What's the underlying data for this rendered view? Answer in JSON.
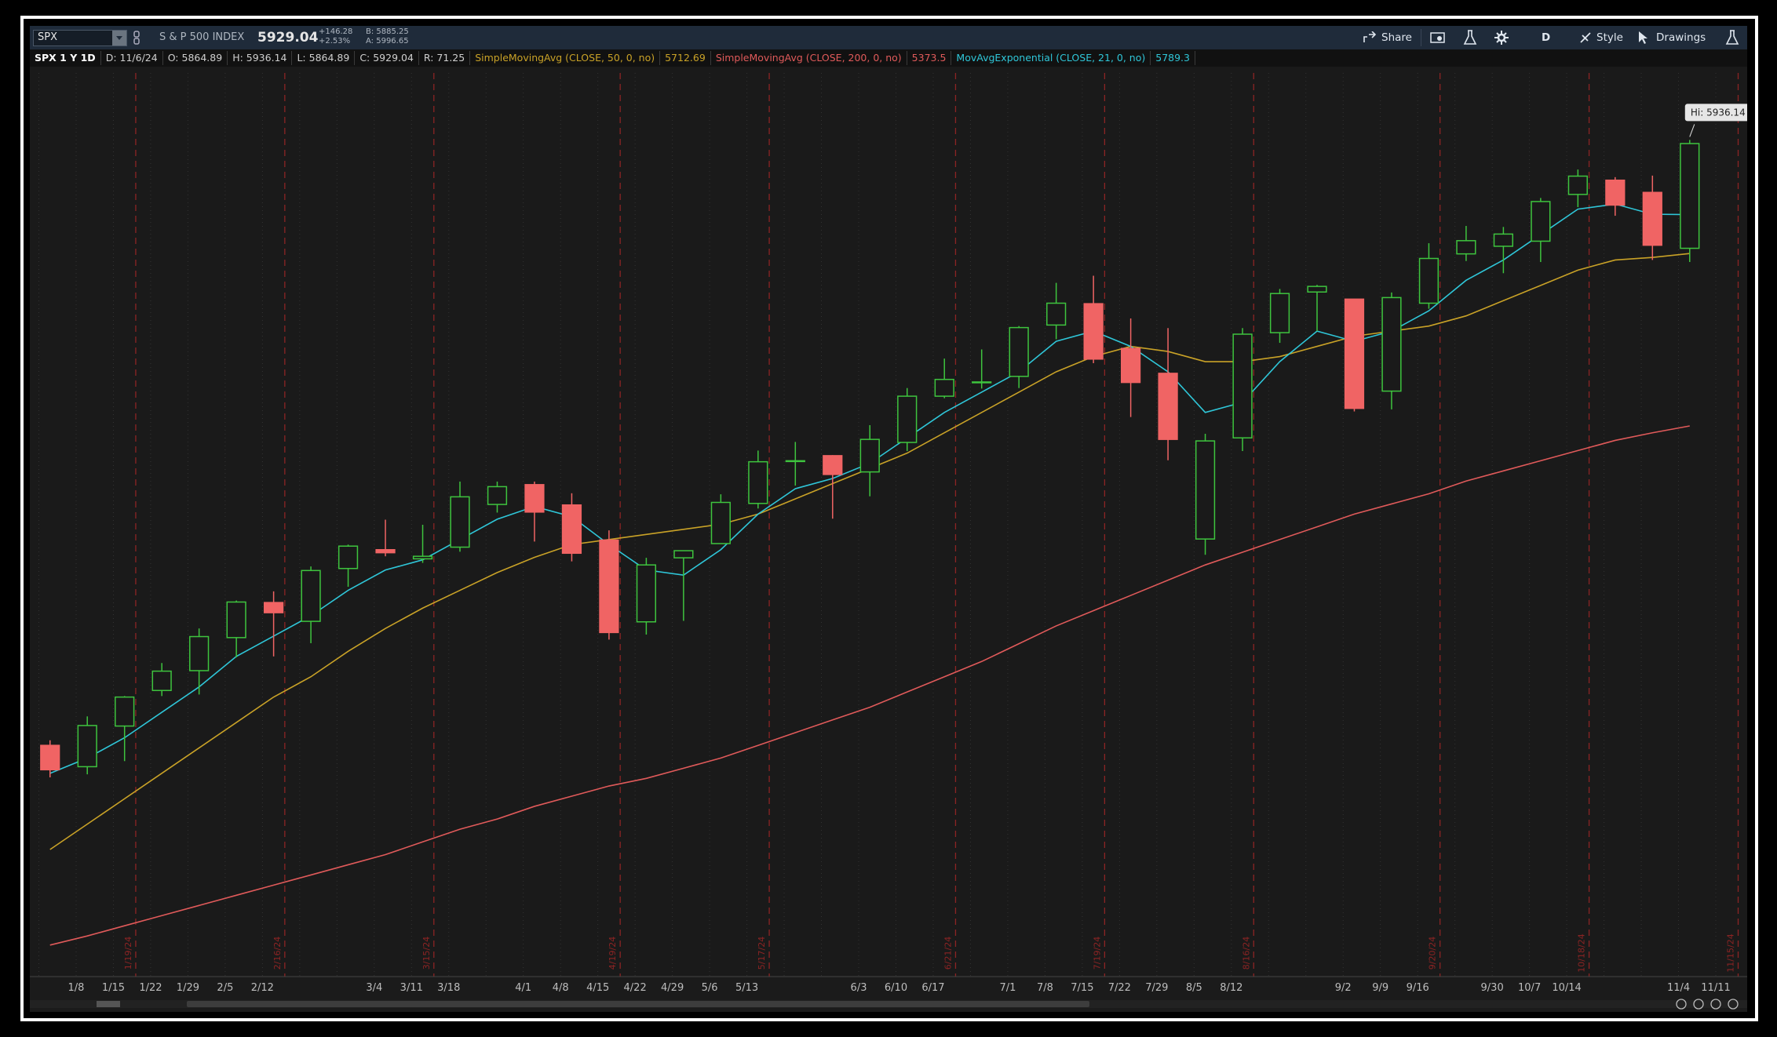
{
  "header": {
    "symbol": "SPX",
    "name": "S & P 500 INDEX",
    "last": "5929.04",
    "change": "+146.28",
    "change_pct": "+2.53%",
    "bid": "B: 5885.25",
    "ask": "A: 5996.65",
    "buttons": [
      "Share",
      "D",
      "Style",
      "Drawings"
    ],
    "info": [
      "SPX 1 Y 1D",
      "D: 11/6/24",
      "O: 5864.89",
      "H: 5936.14",
      "L: 5864.89",
      "C: 5929.04",
      "R: 71.25"
    ]
  },
  "chart_data": {
    "type": "candlestick",
    "categories": [
      null,
      "1/8",
      "1/15",
      "1/22",
      "1/29",
      "2/5",
      "2/12",
      null,
      null,
      "3/4",
      "3/11",
      "3/18",
      null,
      "4/1",
      "4/8",
      "4/15",
      "4/22",
      "4/29",
      "5/6",
      "5/13",
      null,
      null,
      "6/3",
      "6/10",
      "6/17",
      null,
      "7/1",
      "7/8",
      "7/15",
      "7/22",
      "7/29",
      "8/5",
      "8/12",
      null,
      null,
      "9/2",
      "9/9",
      "9/16",
      null,
      "9/30",
      "10/7",
      "10/14",
      null,
      null,
      "11/4",
      "11/11"
    ],
    "expirations": [
      null,
      null,
      "1/19/24",
      null,
      null,
      null,
      "2/16/24",
      null,
      null,
      null,
      "3/15/24",
      null,
      null,
      null,
      null,
      "4/19/24",
      null,
      null,
      null,
      "5/17/24",
      null,
      null,
      null,
      null,
      "6/21/24",
      null,
      null,
      null,
      "7/19/24",
      null,
      null,
      null,
      "8/16/24",
      null,
      null,
      null,
      null,
      "9/20/24",
      null,
      null,
      null,
      "10/18/24",
      null,
      null,
      null,
      "11/15/24"
    ],
    "open": [
      4745,
      4703,
      4783,
      4853,
      4892,
      4957,
      5026,
      4989,
      5093,
      5130,
      5112,
      5135,
      5219,
      5258,
      5218,
      5149,
      4988,
      5114,
      5142,
      5221,
      5305,
      5315,
      5283,
      5341,
      5432,
      5460,
      5471,
      5572,
      5614,
      5526,
      5477,
      5151,
      5350,
      5557,
      5637,
      5623,
      5442,
      5615,
      5712,
      5727,
      5737,
      5829,
      5857,
      5833,
      5723,
      null
    ],
    "high": [
      4755,
      4802,
      4842,
      4907,
      4975,
      5030,
      5048,
      5097,
      5140,
      5189,
      5179,
      5264,
      5264,
      5264,
      5241,
      5168,
      5114,
      5123,
      5239,
      5325,
      5342,
      5316,
      5375,
      5448,
      5506,
      5524,
      5570,
      5655,
      5669,
      5585,
      5566,
      5358,
      5566,
      5643,
      5651,
      5623,
      5636,
      5733,
      5767,
      5765,
      5822,
      5878,
      5863,
      5866,
      5936.14,
      null
    ],
    "low": [
      4682,
      4688,
      4714,
      4842,
      4845,
      4918,
      4920,
      4946,
      5057,
      5117,
      5104,
      5126,
      5203,
      5146,
      5107,
      4953,
      4963,
      4990,
      5142,
      5211,
      5256,
      5191,
      5235,
      5324,
      5428,
      5447,
      5448,
      5544,
      5497,
      5391,
      5306,
      5120,
      5324,
      5537,
      5560,
      5402,
      5406,
      5604,
      5698,
      5674,
      5696,
      5804,
      5787,
      5700,
      5696,
      null
    ],
    "close": [
      4697,
      4784,
      4840,
      4891,
      4959,
      5027,
      5006,
      5089,
      5137,
      5124,
      5117,
      5234,
      5254,
      5204,
      5123,
      4967,
      5100,
      5128,
      5223,
      5303,
      5305,
      5278,
      5347,
      5432,
      5465,
      5460,
      5567,
      5615,
      5505,
      5459,
      5347,
      5344,
      5554,
      5634,
      5648,
      5408,
      5626,
      5703,
      5738,
      5751,
      5815,
      5865,
      5808,
      5729,
      5929.04,
      null
    ],
    "up_color": "#3ec43e",
    "down_color": "#f06464",
    "series": [
      {
        "name": "SimpleMovingAvg (CLOSE, 50, 0, no)",
        "color": "#c9a227",
        "values": [
          4540,
          4590,
          4640,
          4690,
          4740,
          4790,
          4840,
          4880,
          4930,
          4975,
          5015,
          5050,
          5085,
          5115,
          5140,
          5150,
          5160,
          5170,
          5180,
          5200,
          5230,
          5260,
          5290,
          5320,
          5360,
          5400,
          5440,
          5480,
          5510,
          5530,
          5520,
          5500,
          5500,
          5510,
          5530,
          5550,
          5560,
          5570,
          5590,
          5620,
          5650,
          5680,
          5700,
          5705,
          5712.69,
          null
        ]
      },
      {
        "name": "SimpleMovingAvg (CLOSE, 200, 0, no)",
        "color": "#e05a5a",
        "values": [
          4352,
          4370,
          4390,
          4410,
          4430,
          4450,
          4470,
          4490,
          4510,
          4530,
          4555,
          4580,
          4600,
          4625,
          4645,
          4665,
          4680,
          4700,
          4720,
          4745,
          4770,
          4795,
          4820,
          4850,
          4880,
          4910,
          4945,
          4980,
          5010,
          5040,
          5070,
          5100,
          5125,
          5150,
          5175,
          5200,
          5220,
          5240,
          5265,
          5285,
          5305,
          5325,
          5345,
          5360,
          5373.5,
          null
        ]
      },
      {
        "name": "MovAvgExponential (CLOSE, 21, 0, no)",
        "color": "#2fc6d8",
        "values": [
          4690,
          4720,
          4760,
          4810,
          4860,
          4920,
          4960,
          5000,
          5050,
          5090,
          5110,
          5150,
          5190,
          5215,
          5195,
          5140,
          5090,
          5080,
          5130,
          5200,
          5250,
          5270,
          5300,
          5350,
          5400,
          5440,
          5480,
          5540,
          5560,
          5530,
          5480,
          5400,
          5420,
          5500,
          5560,
          5540,
          5560,
          5600,
          5660,
          5700,
          5750,
          5800,
          5810,
          5790,
          5789.3,
          null
        ]
      }
    ],
    "ylim": [
      4290,
      6068
    ],
    "annotation": "Hi: 5936.14"
  }
}
